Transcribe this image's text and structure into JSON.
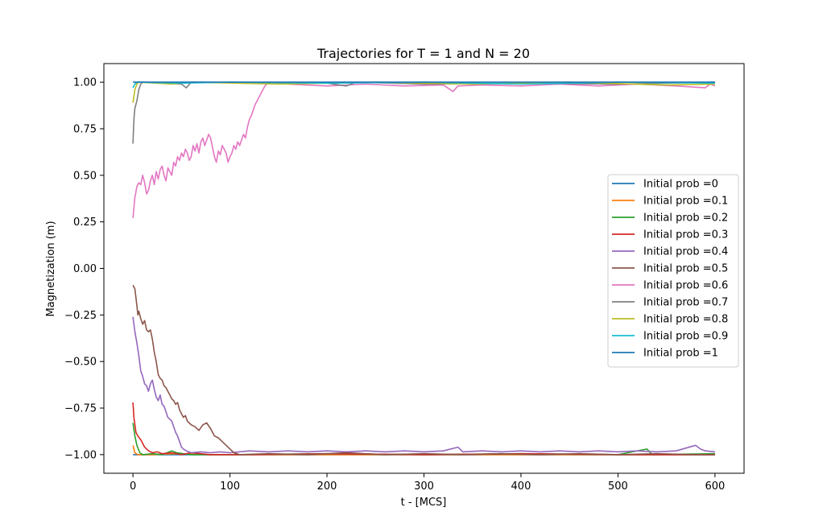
{
  "chart_data": {
    "type": "line",
    "title": "Trajectories for T = 1 and N = 20",
    "xlabel": "t - [MCS]",
    "ylabel": "Magnetization (m)",
    "xlim": [
      -30,
      630
    ],
    "ylim": [
      -1.1,
      1.1
    ],
    "xticks": [
      0,
      100,
      200,
      300,
      400,
      500,
      600
    ],
    "xtick_labels": [
      "0",
      "100",
      "200",
      "300",
      "400",
      "500",
      "600"
    ],
    "yticks": [
      -1.0,
      -0.75,
      -0.5,
      -0.25,
      0.0,
      0.25,
      0.5,
      0.75,
      1.0
    ],
    "ytick_labels": [
      "−1.00",
      "−0.75",
      "−0.50",
      "−0.25",
      "0.00",
      "0.25",
      "0.50",
      "0.75",
      "1.00"
    ],
    "grid": false,
    "legend_position": "center-right",
    "series": [
      {
        "name": "Initial prob =0",
        "color": "#1f77b4",
        "points": [
          [
            0,
            -1.0
          ],
          [
            600,
            -1.0
          ]
        ]
      },
      {
        "name": "Initial prob =0.1",
        "color": "#ff7f0e",
        "points": [
          [
            0,
            -0.95
          ],
          [
            2,
            -0.99
          ],
          [
            5,
            -1.0
          ],
          [
            20,
            -1.0
          ],
          [
            40,
            -0.995
          ],
          [
            80,
            -1.0
          ],
          [
            150,
            -1.0
          ],
          [
            250,
            -1.0
          ],
          [
            350,
            -1.0
          ],
          [
            450,
            -1.0
          ],
          [
            550,
            -1.0
          ],
          [
            600,
            -1.0
          ]
        ]
      },
      {
        "name": "Initial prob =0.2",
        "color": "#2ca02c",
        "points": [
          [
            0,
            -0.83
          ],
          [
            2,
            -0.9
          ],
          [
            4,
            -0.95
          ],
          [
            7,
            -0.99
          ],
          [
            10,
            -1.0
          ],
          [
            20,
            -0.995
          ],
          [
            30,
            -1.0
          ],
          [
            40,
            -0.98
          ],
          [
            45,
            -0.99
          ],
          [
            60,
            -1.0
          ],
          [
            100,
            -1.0
          ],
          [
            200,
            -0.995
          ],
          [
            300,
            -1.0
          ],
          [
            400,
            -0.995
          ],
          [
            500,
            -1.0
          ],
          [
            530,
            -0.97
          ],
          [
            535,
            -1.0
          ],
          [
            600,
            -0.995
          ]
        ]
      },
      {
        "name": "Initial prob =0.3",
        "color": "#d62728",
        "points": [
          [
            0,
            -0.72
          ],
          [
            1,
            -0.8
          ],
          [
            3,
            -0.88
          ],
          [
            5,
            -0.9
          ],
          [
            8,
            -0.92
          ],
          [
            12,
            -0.96
          ],
          [
            16,
            -0.98
          ],
          [
            20,
            -0.99
          ],
          [
            25,
            -0.985
          ],
          [
            30,
            -0.995
          ],
          [
            40,
            -0.99
          ],
          [
            50,
            -1.0
          ],
          [
            60,
            -0.99
          ],
          [
            80,
            -1.0
          ],
          [
            120,
            -1.0
          ],
          [
            200,
            -0.995
          ],
          [
            300,
            -1.0
          ],
          [
            400,
            -0.995
          ],
          [
            500,
            -1.0
          ],
          [
            600,
            -1.0
          ]
        ]
      },
      {
        "name": "Initial prob =0.4",
        "color": "#9467bd",
        "points": [
          [
            0,
            -0.26
          ],
          [
            2,
            -0.34
          ],
          [
            4,
            -0.4
          ],
          [
            6,
            -0.47
          ],
          [
            8,
            -0.55
          ],
          [
            10,
            -0.58
          ],
          [
            12,
            -0.62
          ],
          [
            14,
            -0.63
          ],
          [
            16,
            -0.66
          ],
          [
            18,
            -0.62
          ],
          [
            20,
            -0.6
          ],
          [
            22,
            -0.65
          ],
          [
            24,
            -0.69
          ],
          [
            26,
            -0.71
          ],
          [
            28,
            -0.68
          ],
          [
            30,
            -0.73
          ],
          [
            32,
            -0.74
          ],
          [
            34,
            -0.77
          ],
          [
            36,
            -0.8
          ],
          [
            38,
            -0.81
          ],
          [
            40,
            -0.82
          ],
          [
            42,
            -0.85
          ],
          [
            44,
            -0.88
          ],
          [
            46,
            -0.9
          ],
          [
            48,
            -0.93
          ],
          [
            50,
            -0.96
          ],
          [
            52,
            -0.97
          ],
          [
            55,
            -0.98
          ],
          [
            60,
            -0.99
          ],
          [
            70,
            -0.985
          ],
          [
            80,
            -0.99
          ],
          [
            90,
            -0.985
          ],
          [
            100,
            -0.99
          ],
          [
            120,
            -0.98
          ],
          [
            140,
            -0.985
          ],
          [
            160,
            -0.98
          ],
          [
            180,
            -0.985
          ],
          [
            200,
            -0.98
          ],
          [
            220,
            -0.985
          ],
          [
            240,
            -0.98
          ],
          [
            260,
            -0.985
          ],
          [
            280,
            -0.98
          ],
          [
            300,
            -0.985
          ],
          [
            320,
            -0.98
          ],
          [
            335,
            -0.96
          ],
          [
            340,
            -0.985
          ],
          [
            360,
            -0.98
          ],
          [
            380,
            -0.985
          ],
          [
            400,
            -0.98
          ],
          [
            420,
            -0.985
          ],
          [
            440,
            -0.98
          ],
          [
            460,
            -0.985
          ],
          [
            480,
            -0.98
          ],
          [
            500,
            -0.985
          ],
          [
            520,
            -0.98
          ],
          [
            540,
            -0.985
          ],
          [
            560,
            -0.98
          ],
          [
            580,
            -0.95
          ],
          [
            585,
            -0.97
          ],
          [
            590,
            -0.98
          ],
          [
            600,
            -0.985
          ]
        ]
      },
      {
        "name": "Initial prob =0.5",
        "color": "#8c564b",
        "points": [
          [
            0,
            -0.09
          ],
          [
            2,
            -0.11
          ],
          [
            4,
            -0.2
          ],
          [
            5,
            -0.25
          ],
          [
            6,
            -0.23
          ],
          [
            8,
            -0.27
          ],
          [
            10,
            -0.3
          ],
          [
            12,
            -0.28
          ],
          [
            14,
            -0.33
          ],
          [
            16,
            -0.34
          ],
          [
            18,
            -0.33
          ],
          [
            20,
            -0.38
          ],
          [
            22,
            -0.45
          ],
          [
            24,
            -0.5
          ],
          [
            26,
            -0.57
          ],
          [
            28,
            -0.59
          ],
          [
            30,
            -0.6
          ],
          [
            32,
            -0.63
          ],
          [
            34,
            -0.64
          ],
          [
            36,
            -0.66
          ],
          [
            38,
            -0.68
          ],
          [
            40,
            -0.7
          ],
          [
            42,
            -0.71
          ],
          [
            44,
            -0.73
          ],
          [
            46,
            -0.72
          ],
          [
            48,
            -0.76
          ],
          [
            50,
            -0.78
          ],
          [
            52,
            -0.8
          ],
          [
            54,
            -0.79
          ],
          [
            56,
            -0.82
          ],
          [
            58,
            -0.83
          ],
          [
            60,
            -0.84
          ],
          [
            64,
            -0.85
          ],
          [
            68,
            -0.87
          ],
          [
            72,
            -0.84
          ],
          [
            76,
            -0.83
          ],
          [
            80,
            -0.86
          ],
          [
            84,
            -0.9
          ],
          [
            88,
            -0.91
          ],
          [
            92,
            -0.93
          ],
          [
            96,
            -0.95
          ],
          [
            100,
            -0.97
          ],
          [
            104,
            -0.99
          ],
          [
            110,
            -1.0
          ],
          [
            140,
            -0.995
          ],
          [
            180,
            -1.0
          ],
          [
            220,
            -0.99
          ],
          [
            260,
            -1.0
          ],
          [
            300,
            -0.995
          ],
          [
            340,
            -1.0
          ],
          [
            380,
            -0.995
          ],
          [
            420,
            -1.0
          ],
          [
            460,
            -0.995
          ],
          [
            500,
            -1.0
          ],
          [
            540,
            -0.995
          ],
          [
            580,
            -1.0
          ],
          [
            600,
            -1.0
          ]
        ]
      },
      {
        "name": "Initial prob =0.6",
        "color": "#e377c2",
        "points": [
          [
            0,
            0.27
          ],
          [
            2,
            0.38
          ],
          [
            4,
            0.44
          ],
          [
            6,
            0.46
          ],
          [
            8,
            0.45
          ],
          [
            10,
            0.5
          ],
          [
            12,
            0.46
          ],
          [
            14,
            0.4
          ],
          [
            16,
            0.42
          ],
          [
            18,
            0.47
          ],
          [
            20,
            0.5
          ],
          [
            22,
            0.45
          ],
          [
            24,
            0.52
          ],
          [
            26,
            0.48
          ],
          [
            28,
            0.53
          ],
          [
            30,
            0.55
          ],
          [
            32,
            0.5
          ],
          [
            34,
            0.47
          ],
          [
            36,
            0.54
          ],
          [
            38,
            0.52
          ],
          [
            40,
            0.5
          ],
          [
            42,
            0.57
          ],
          [
            44,
            0.55
          ],
          [
            46,
            0.6
          ],
          [
            48,
            0.58
          ],
          [
            50,
            0.62
          ],
          [
            52,
            0.6
          ],
          [
            54,
            0.64
          ],
          [
            56,
            0.62
          ],
          [
            58,
            0.58
          ],
          [
            60,
            0.6
          ],
          [
            62,
            0.66
          ],
          [
            64,
            0.63
          ],
          [
            66,
            0.67
          ],
          [
            68,
            0.62
          ],
          [
            70,
            0.68
          ],
          [
            72,
            0.7
          ],
          [
            74,
            0.66
          ],
          [
            76,
            0.69
          ],
          [
            78,
            0.72
          ],
          [
            80,
            0.7
          ],
          [
            82,
            0.65
          ],
          [
            84,
            0.6
          ],
          [
            86,
            0.57
          ],
          [
            88,
            0.63
          ],
          [
            90,
            0.61
          ],
          [
            92,
            0.66
          ],
          [
            94,
            0.64
          ],
          [
            96,
            0.62
          ],
          [
            98,
            0.57
          ],
          [
            100,
            0.6
          ],
          [
            102,
            0.62
          ],
          [
            104,
            0.66
          ],
          [
            106,
            0.64
          ],
          [
            108,
            0.68
          ],
          [
            110,
            0.66
          ],
          [
            112,
            0.69
          ],
          [
            114,
            0.72
          ],
          [
            116,
            0.7
          ],
          [
            118,
            0.76
          ],
          [
            120,
            0.8
          ],
          [
            122,
            0.82
          ],
          [
            124,
            0.85
          ],
          [
            126,
            0.88
          ],
          [
            128,
            0.9
          ],
          [
            130,
            0.92
          ],
          [
            132,
            0.94
          ],
          [
            134,
            0.96
          ],
          [
            136,
            0.98
          ],
          [
            140,
            1.0
          ],
          [
            160,
            0.99
          ],
          [
            200,
            0.98
          ],
          [
            240,
            0.99
          ],
          [
            280,
            0.98
          ],
          [
            320,
            0.985
          ],
          [
            330,
            0.95
          ],
          [
            335,
            0.98
          ],
          [
            360,
            0.985
          ],
          [
            400,
            0.98
          ],
          [
            440,
            0.99
          ],
          [
            480,
            0.98
          ],
          [
            520,
            0.99
          ],
          [
            560,
            0.98
          ],
          [
            590,
            0.97
          ],
          [
            595,
            0.99
          ],
          [
            600,
            0.98
          ]
        ]
      },
      {
        "name": "Initial prob =0.7",
        "color": "#7f7f7f",
        "points": [
          [
            0,
            0.67
          ],
          [
            1,
            0.8
          ],
          [
            2,
            0.86
          ],
          [
            4,
            0.9
          ],
          [
            6,
            0.96
          ],
          [
            8,
            0.99
          ],
          [
            10,
            1.0
          ],
          [
            50,
            0.99
          ],
          [
            55,
            0.97
          ],
          [
            60,
            1.0
          ],
          [
            200,
            0.995
          ],
          [
            220,
            0.98
          ],
          [
            230,
            1.0
          ],
          [
            300,
            0.99
          ],
          [
            400,
            0.995
          ],
          [
            500,
            0.99
          ],
          [
            600,
            1.0
          ]
        ]
      },
      {
        "name": "Initial prob =0.8",
        "color": "#bcbd22",
        "points": [
          [
            0,
            0.89
          ],
          [
            2,
            0.96
          ],
          [
            4,
            0.99
          ],
          [
            6,
            1.0
          ],
          [
            40,
            0.99
          ],
          [
            60,
            1.0
          ],
          [
            150,
            0.99
          ],
          [
            250,
            1.0
          ],
          [
            350,
            0.99
          ],
          [
            450,
            1.0
          ],
          [
            550,
            0.985
          ],
          [
            600,
            0.99
          ]
        ]
      },
      {
        "name": "Initial prob =0.9",
        "color": "#17becf",
        "points": [
          [
            0,
            0.97
          ],
          [
            2,
            0.99
          ],
          [
            4,
            1.0
          ],
          [
            50,
            0.995
          ],
          [
            100,
            1.0
          ],
          [
            200,
            0.995
          ],
          [
            300,
            1.0
          ],
          [
            400,
            0.99
          ],
          [
            500,
            1.0
          ],
          [
            600,
            0.995
          ]
        ]
      },
      {
        "name": "Initial prob =1",
        "color": "#1f77b4",
        "points": [
          [
            0,
            1.0
          ],
          [
            600,
            1.0
          ]
        ]
      }
    ]
  }
}
